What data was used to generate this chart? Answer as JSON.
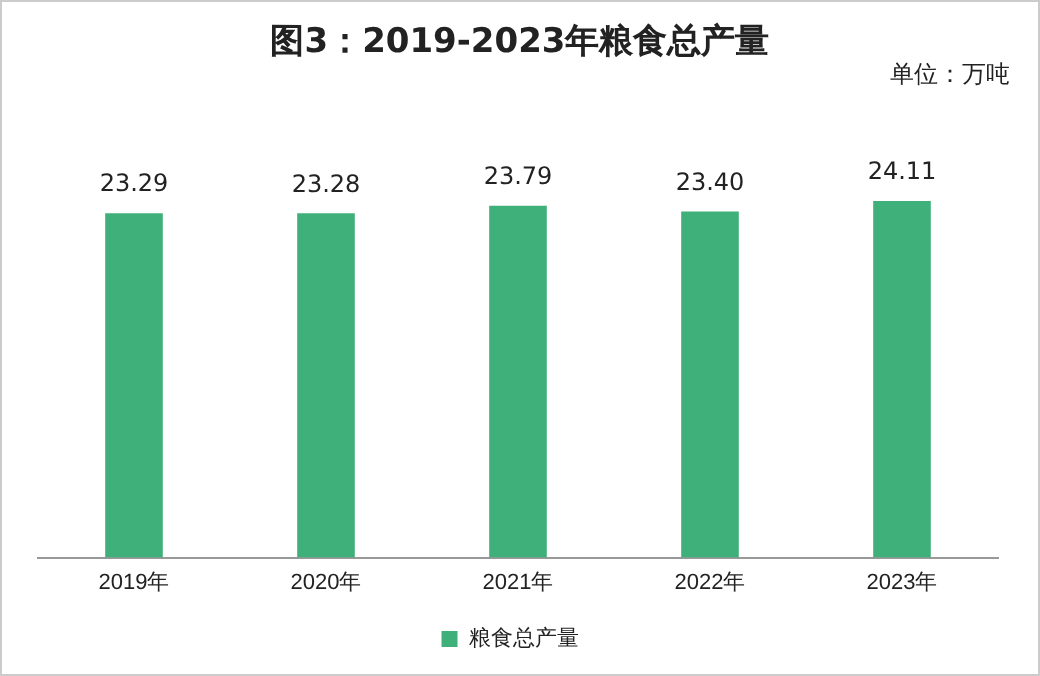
{
  "chart_data": {
    "type": "bar",
    "title": "图3：2019-2023年粮食总产量",
    "annotations": [
      "单位：万吨"
    ],
    "categories": [
      "2019年",
      "2020年",
      "2021年",
      "2022年",
      "2023年"
    ],
    "series": [
      {
        "name": "粮食总产量",
        "color": "#3fb07a",
        "values": [
          23.29,
          23.28,
          23.79,
          23.4,
          24.11
        ],
        "value_labels": [
          "23.29",
          "23.28",
          "23.79",
          "23.40",
          "24.11"
        ]
      }
    ],
    "tick_labels": "x",
    "grid": false,
    "legend": "bottom"
  }
}
